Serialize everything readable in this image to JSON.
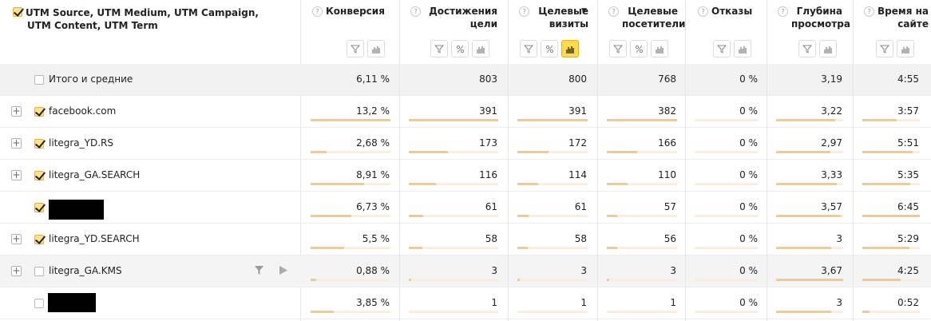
{
  "dimension_header": {
    "label": "UTM Source, UTM Medium, UTM Campaign, UTM Content, UTM Term",
    "checked": true
  },
  "columns": [
    {
      "id": "conv",
      "label": "Конверсия",
      "tools": [
        "filter-icon",
        "chart-icon"
      ],
      "sorted": false
    },
    {
      "id": "goals",
      "label": "Достижения цели",
      "tools": [
        "filter-icon",
        "percent-icon",
        "chart-icon"
      ],
      "sorted": false
    },
    {
      "id": "tvisits",
      "label": "Целевые визиты",
      "tools": [
        "filter-icon",
        "percent-icon",
        "chart-icon"
      ],
      "sorted": true,
      "sort_mark": "▼"
    },
    {
      "id": "tusers",
      "label": "Целевые посетители",
      "tools": [
        "filter-icon",
        "percent-icon",
        "chart-icon"
      ],
      "sorted": false
    },
    {
      "id": "bounce",
      "label": "Отказы",
      "tools": [
        "filter-icon",
        "chart-icon"
      ],
      "sorted": false
    },
    {
      "id": "depth",
      "label": "Глубина просмотра",
      "tools": [
        "filter-icon",
        "chart-icon"
      ],
      "sorted": false
    },
    {
      "id": "time",
      "label": "Время на сайте",
      "tools": [
        "filter-icon",
        "chart-icon"
      ],
      "sorted": false
    }
  ],
  "total_row": {
    "label": "Итого и средние",
    "values": [
      "6,11 %",
      "803",
      "800",
      "768",
      "0 %",
      "3,19",
      "4:55"
    ]
  },
  "rows": [
    {
      "label": "facebook.com",
      "checked": true,
      "expandable": true,
      "redacted": false,
      "values": [
        "13,2 %",
        "391",
        "391",
        "382",
        "0 %",
        "3,22",
        "3:57"
      ],
      "fills": [
        1.0,
        1.0,
        1.0,
        1.0,
        0,
        0.88,
        0.6
      ]
    },
    {
      "label": "litegra_YD.RS",
      "checked": true,
      "expandable": true,
      "redacted": false,
      "values": [
        "2,68 %",
        "173",
        "172",
        "166",
        "0 %",
        "2,97",
        "5:51"
      ],
      "fills": [
        0.2,
        0.44,
        0.44,
        0.43,
        0,
        0.81,
        0.88
      ]
    },
    {
      "label": "litegra_GA.SEARCH",
      "checked": true,
      "expandable": true,
      "redacted": false,
      "values": [
        "8,91 %",
        "116",
        "114",
        "110",
        "0 %",
        "3,33",
        "5:35"
      ],
      "fills": [
        0.67,
        0.3,
        0.29,
        0.29,
        0,
        0.91,
        0.84
      ]
    },
    {
      "label": "",
      "checked": true,
      "expandable": false,
      "redacted": true,
      "values": [
        "6,73 %",
        "61",
        "61",
        "57",
        "0 %",
        "3,57",
        "6:45"
      ],
      "fills": [
        0.51,
        0.16,
        0.16,
        0.15,
        0,
        0.97,
        1.0
      ]
    },
    {
      "label": "litegra_YD.SEARCH",
      "checked": true,
      "expandable": true,
      "redacted": false,
      "values": [
        "5,5 %",
        "58",
        "58",
        "56",
        "0 %",
        "3",
        "5:29"
      ],
      "fills": [
        0.42,
        0.15,
        0.15,
        0.15,
        0,
        0.82,
        0.82
      ]
    },
    {
      "label": "litegra_GA.KMS",
      "checked": false,
      "expandable": true,
      "redacted": false,
      "hover": true,
      "values": [
        "0,88 %",
        "3",
        "3",
        "3",
        "0 %",
        "3,67",
        "4:25"
      ],
      "fills": [
        0.07,
        0.01,
        0.01,
        0.01,
        0,
        1.0,
        0.66
      ]
    },
    {
      "label": "",
      "checked": false,
      "expandable": false,
      "redacted": true,
      "values": [
        "3,85 %",
        "1",
        "1",
        "1",
        "0 %",
        "3",
        "0:52"
      ],
      "fills": [
        0.29,
        0.0,
        0.0,
        0.0,
        0,
        0.82,
        0.13
      ]
    }
  ]
}
